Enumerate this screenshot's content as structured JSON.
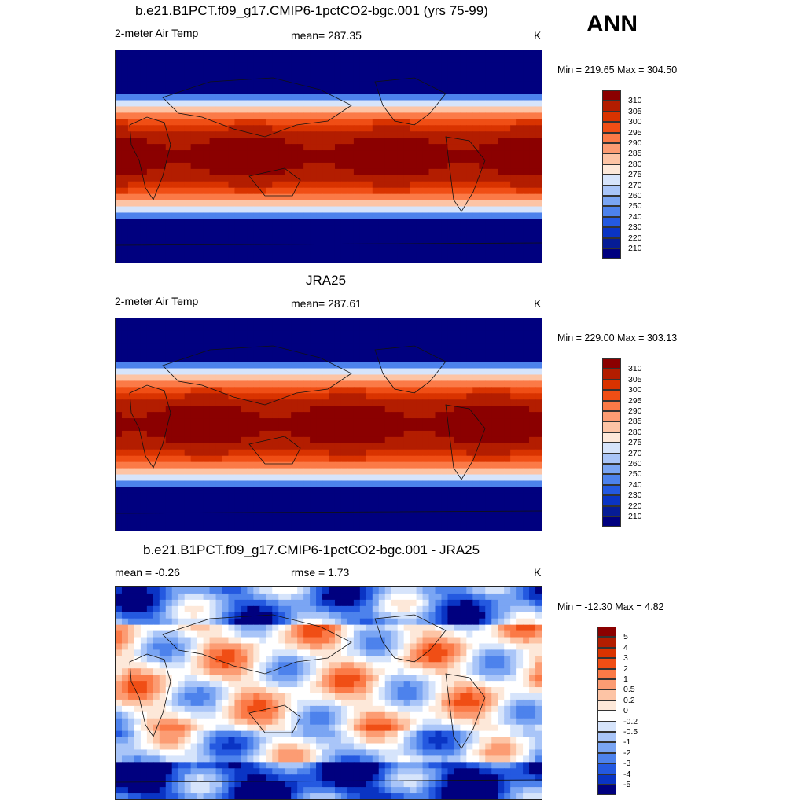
{
  "season_label": "ANN",
  "panels": [
    {
      "title": "b.e21.B1PCT.f09_g17.CMIP6-1pctCO2-bgc.001 (yrs 75-99)",
      "left_label": "2-meter Air Temp",
      "center_label": "mean= 287.35",
      "units": "K",
      "minmax": "Min = 219.65 Max = 304.50",
      "kind": "absolute"
    },
    {
      "title": "JRA25",
      "left_label": "2-meter Air Temp",
      "center_label": "mean= 287.61",
      "units": "K",
      "minmax": "Min = 229.00 Max = 303.13",
      "kind": "absolute"
    },
    {
      "title": "b.e21.B1PCT.f09_g17.CMIP6-1pctCO2-bgc.001 - JRA25",
      "left_label": "mean =  -0.26",
      "center_label": "rmse =   1.73",
      "units": "K",
      "minmax": "Min = -12.30 Max =   4.82",
      "kind": "difference"
    }
  ],
  "colorbar_abs": {
    "labels": [
      "310",
      "305",
      "300",
      "295",
      "290",
      "285",
      "280",
      "275",
      "270",
      "260",
      "250",
      "240",
      "230",
      "220",
      "210"
    ],
    "colors": [
      "#8b0000",
      "#b31d00",
      "#d93300",
      "#f04e15",
      "#fb7a47",
      "#fc9c73",
      "#fdc4a5",
      "#fde8d9",
      "#d6e4fb",
      "#a9c5f8",
      "#7aa5f3",
      "#4d82ec",
      "#2459e0",
      "#0a34c4",
      "#061c96",
      "#00007f"
    ]
  },
  "colorbar_diff": {
    "labels": [
      "5",
      "4",
      "3",
      "2",
      "1",
      "0.5",
      "0.2",
      "0",
      "-0.2",
      "-0.5",
      "-1",
      "-2",
      "-3",
      "-4",
      "-5"
    ],
    "colors": [
      "#8b0000",
      "#b31d00",
      "#d93300",
      "#f04e15",
      "#fb7a47",
      "#fc9c73",
      "#fdc4a5",
      "#fde8d9",
      "#ffffff",
      "#d6e4fb",
      "#a9c5f8",
      "#7aa5f3",
      "#4d82ec",
      "#2459e0",
      "#0a34c4",
      "#00007f"
    ]
  }
}
